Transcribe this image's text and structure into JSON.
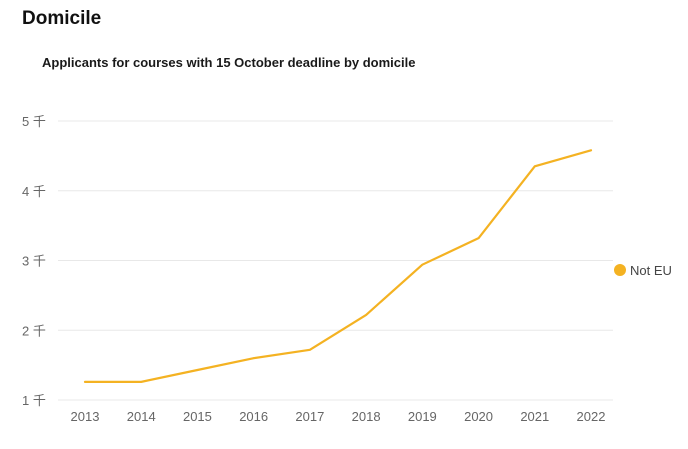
{
  "header": {
    "title": "Domicile"
  },
  "chart_data": {
    "type": "line",
    "title": "Applicants for courses with 15 October deadline by domicile",
    "xlabel": "",
    "ylabel": "",
    "x": [
      "2013",
      "2014",
      "2015",
      "2016",
      "2017",
      "2018",
      "2019",
      "2020",
      "2021",
      "2022"
    ],
    "series": [
      {
        "name": "Not EU",
        "color": "#F4B222",
        "values": [
          1.26,
          1.26,
          1.43,
          1.6,
          1.72,
          2.22,
          2.94,
          3.32,
          4.35,
          4.58
        ]
      }
    ],
    "ylim": [
      1,
      5
    ],
    "yticks": [
      {
        "value": 1,
        "label": "1 千"
      },
      {
        "value": 2,
        "label": "2 千"
      },
      {
        "value": 3,
        "label": "3 千"
      },
      {
        "value": 4,
        "label": "4 千"
      },
      {
        "value": 5,
        "label": "5 千"
      }
    ],
    "grid": true,
    "legend_position": "right",
    "grid_color": "#e8e8e8"
  }
}
